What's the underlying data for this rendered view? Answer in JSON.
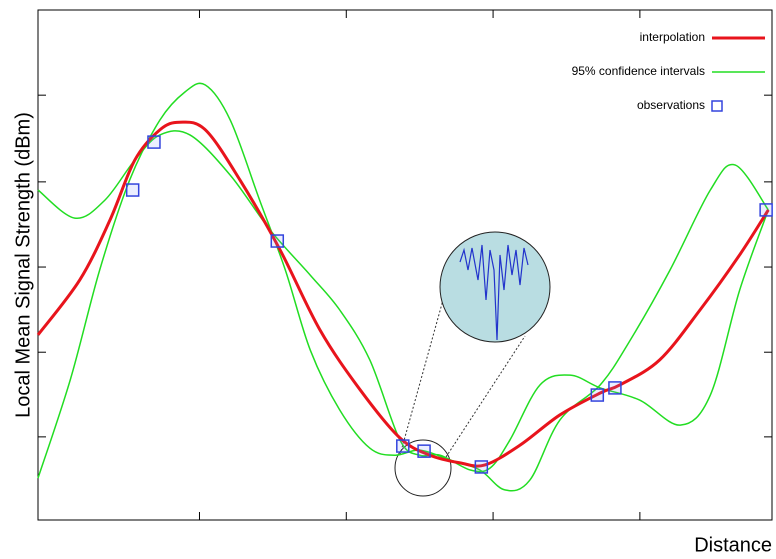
{
  "chart_data": {
    "type": "line",
    "ylabel": "Local Mean Signal Strength (dBm)",
    "xlabel": "Distance",
    "xlim": [
      0,
      100
    ],
    "ylim": [
      0,
      100
    ],
    "xticks": [
      22,
      42,
      62,
      82
    ],
    "yticks": [
      16.3,
      32.9,
      49.6,
      66.3,
      83.3
    ],
    "legend": "upper right",
    "series": [
      {
        "name": "interpolation",
        "color": "#e8141c",
        "kind": "line",
        "x": [
          0,
          5.7,
          9.8,
          13.2,
          16.6,
          19.3,
          22.8,
          27.5,
          33.0,
          38.4,
          43.9,
          49.3,
          53.4,
          57.5,
          60.9,
          65.7,
          71.1,
          76.6,
          79.3,
          84.7,
          90.2,
          95.6,
          99.5
        ],
        "values": [
          36.3,
          47.1,
          58.8,
          70.6,
          76.5,
          78.0,
          76.5,
          66.7,
          52.9,
          37.3,
          25.5,
          16.1,
          12.7,
          11.2,
          10.8,
          14.7,
          20.6,
          24.9,
          26.5,
          31.4,
          41.2,
          52.0,
          60.8
        ]
      },
      {
        "name": "95% confidence intervals",
        "color": "#22dd22",
        "kind": "band",
        "curves": [
          {
            "x": [
              0,
              5.0,
              9.1,
              13.2,
              16.6,
              20.7,
              26.2,
              31.6,
              37.1,
              41.1,
              45.2,
              49.3,
              52.0,
              54.8,
              58.9,
              61.6,
              64.3,
              68.4,
              72.5,
              76.6,
              82.0,
              87.5,
              91.6,
              95.6,
              99.5
            ],
            "values": [
              64.7,
              59.2,
              62.7,
              70.6,
              75.5,
              75.5,
              67.6,
              56.9,
              48.0,
              41.2,
              31.4,
              15.7,
              12.7,
              12.7,
              9.8,
              10.2,
              15.7,
              26.5,
              28.4,
              25.9,
              23.5,
              18.6,
              24.5,
              45.1,
              60.8
            ]
          },
          {
            "x": [
              0,
              4.4,
              8.4,
              12.5,
              16.6,
              20.0,
              22.8,
              26.2,
              30.2,
              33.7,
              37.1,
              41.1,
              45.2,
              48.6,
              52.0,
              56.1,
              60.2,
              63.6,
              67.0,
              71.1,
              76.6,
              80.7,
              86.1,
              91.6,
              95.0,
              99.5
            ],
            "values": [
              8.2,
              27.5,
              49.0,
              66.7,
              78.4,
              83.9,
              85.3,
              78.4,
              62.7,
              49.0,
              33.3,
              21.6,
              14.1,
              12.7,
              13.7,
              11.8,
              9.8,
              5.9,
              7.8,
              19.6,
              26.5,
              35.3,
              49.0,
              64.7,
              69.6,
              60.8
            ]
          }
        ]
      },
      {
        "name": "observations",
        "color": "#3344dd",
        "kind": "points",
        "x": [
          12.9,
          15.8,
          32.6,
          49.7,
          52.6,
          60.4,
          76.2,
          78.6,
          99.2
        ],
        "values": [
          64.7,
          74.1,
          54.7,
          14.5,
          13.5,
          10.4,
          24.5,
          25.9,
          60.8
        ]
      }
    ]
  }
}
